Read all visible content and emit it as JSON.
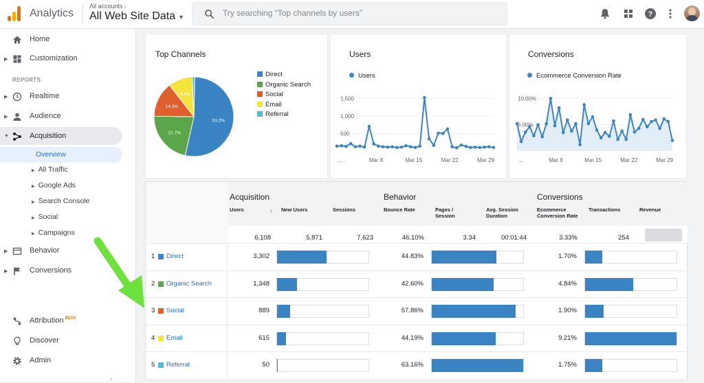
{
  "app": {
    "name": "Analytics",
    "breadcrumb": "All accounts",
    "account": "All Web Site Data"
  },
  "search": {
    "placeholder": "Try searching “Top channels by users”"
  },
  "sidebar": {
    "items": [
      {
        "label": "Home",
        "icon": "home-icon"
      },
      {
        "label": "Customization",
        "icon": "dashboard-icon"
      },
      {
        "label": "Realtime",
        "icon": "clock-icon"
      },
      {
        "label": "Audience",
        "icon": "person-icon"
      },
      {
        "label": "Acquisition",
        "icon": "acquisition-icon"
      },
      {
        "label": "Behavior",
        "icon": "behavior-icon"
      },
      {
        "label": "Conversions",
        "icon": "flag-icon"
      },
      {
        "label": "Attribution",
        "icon": "attribution-icon",
        "badge": "BETA"
      },
      {
        "label": "Discover",
        "icon": "lightbulb-icon"
      },
      {
        "label": "Admin",
        "icon": "gear-icon"
      }
    ],
    "section": "REPORTS",
    "sub": [
      "Overview",
      "All Traffic",
      "Google Ads",
      "Search Console",
      "Social",
      "Campaigns"
    ]
  },
  "cards": {
    "channels": {
      "title": "Top Channels"
    },
    "users": {
      "title": "Users",
      "legend": "Users"
    },
    "conversions": {
      "title": "Conversions",
      "legend": "Ecommerce Conversion Rate"
    }
  },
  "chart_data": [
    {
      "type": "pie",
      "title": "Top Channels",
      "labels": [
        "Direct",
        "Organic Search",
        "Social",
        "Email",
        "Referral"
      ],
      "values": [
        53.2,
        21.7,
        14.3,
        9.8,
        1.0
      ],
      "slice_labels": [
        "53.2%",
        "21.7%",
        "14.3%",
        "9.8%",
        ""
      ],
      "colors": [
        "#3b84c4",
        "#5ba64a",
        "#e0602d",
        "#f4e53d",
        "#55b8d6"
      ]
    },
    {
      "type": "line",
      "title": "Users",
      "series": [
        {
          "name": "Users",
          "values": [
            140,
            150,
            130,
            210,
            120,
            140,
            110,
            700,
            200,
            140,
            120,
            110,
            120,
            100,
            110,
            150,
            120,
            100,
            140,
            1520,
            350,
            160,
            510,
            500,
            630,
            120,
            90,
            170,
            130,
            100,
            110,
            100,
            110,
            120,
            100
          ]
        }
      ],
      "yticks": [
        "500",
        "1,000",
        "1,500"
      ],
      "ytick_values": [
        500,
        1000,
        1500
      ],
      "xticks": [
        "...",
        "Mar 8",
        "Mar 15",
        "Mar 22",
        "Mar 29"
      ],
      "ylim": [
        0,
        1800
      ],
      "area": false
    },
    {
      "type": "area",
      "title": "Conversions",
      "series": [
        {
          "name": "Ecommerce Conversion Rate",
          "values": [
            5.2,
            1.8,
            3.6,
            4.6,
            2.9,
            5.0,
            2.7,
            5.2,
            10.0,
            4.8,
            8.2,
            3.5,
            5.9,
            3.8,
            5.2,
            1.2,
            8.8,
            5.2,
            6.5,
            4.0,
            2.5,
            3.5,
            2.8,
            5.7,
            2.2,
            3.8,
            2.2,
            6.9,
            3.6,
            4.3,
            6.0,
            4.6,
            5.6,
            5.9,
            4.3,
            6.1,
            5.6,
            2.0
          ]
        }
      ],
      "yticks": [
        "5.00%",
        "10.00%"
      ],
      "ytick_values": [
        5,
        10
      ],
      "xticks": [
        "...",
        "Mar 8",
        "Mar 15",
        "Mar 22",
        "Mar 29"
      ],
      "ylim": [
        0,
        12
      ],
      "area": true
    }
  ],
  "table": {
    "groups": [
      "Acquisition",
      "Behavior",
      "Conversions"
    ],
    "headers": [
      "Users",
      "New Users",
      "Sessions",
      "Bounce Rate",
      "Pages / Session",
      "Avg. Session Duration",
      "Ecommerce Conversion Rate",
      "Transactions",
      "Revenue"
    ],
    "totals": [
      "6,108",
      "5,871",
      "7,623",
      "46.10%",
      "3.34",
      "00:01:44",
      "3.33%",
      "254",
      ""
    ],
    "rows": [
      {
        "idx": "1",
        "name": "Direct",
        "color": "#3b84c4",
        "users": "3,302",
        "users_pct": 54.1,
        "bounce": "44.83%",
        "bounce_pct": 71,
        "conv": "1.70%",
        "conv_pct": 18.5
      },
      {
        "idx": "2",
        "name": "Organic Search",
        "color": "#5ba64a",
        "users": "1,348",
        "users_pct": 22.1,
        "bounce": "42.60%",
        "bounce_pct": 67.5,
        "conv": "4.84%",
        "conv_pct": 52.6
      },
      {
        "idx": "3",
        "name": "Social",
        "color": "#e0602d",
        "users": "889",
        "users_pct": 14.6,
        "bounce": "57.86%",
        "bounce_pct": 91.6,
        "conv": "1.90%",
        "conv_pct": 20.6
      },
      {
        "idx": "4",
        "name": "Email",
        "color": "#f4e53d",
        "users": "615",
        "users_pct": 10.1,
        "bounce": "44.19%",
        "bounce_pct": 70,
        "conv": "9.21%",
        "conv_pct": 100
      },
      {
        "idx": "5",
        "name": "Referral",
        "color": "#55b8d6",
        "users": "50",
        "users_pct": 0.8,
        "bounce": "63.16%",
        "bounce_pct": 100,
        "conv": "1.75%",
        "conv_pct": 19
      }
    ]
  },
  "colors": {
    "accent": "#3b84c4",
    "link": "#1a73e8",
    "arrow": "#6ee13c"
  }
}
